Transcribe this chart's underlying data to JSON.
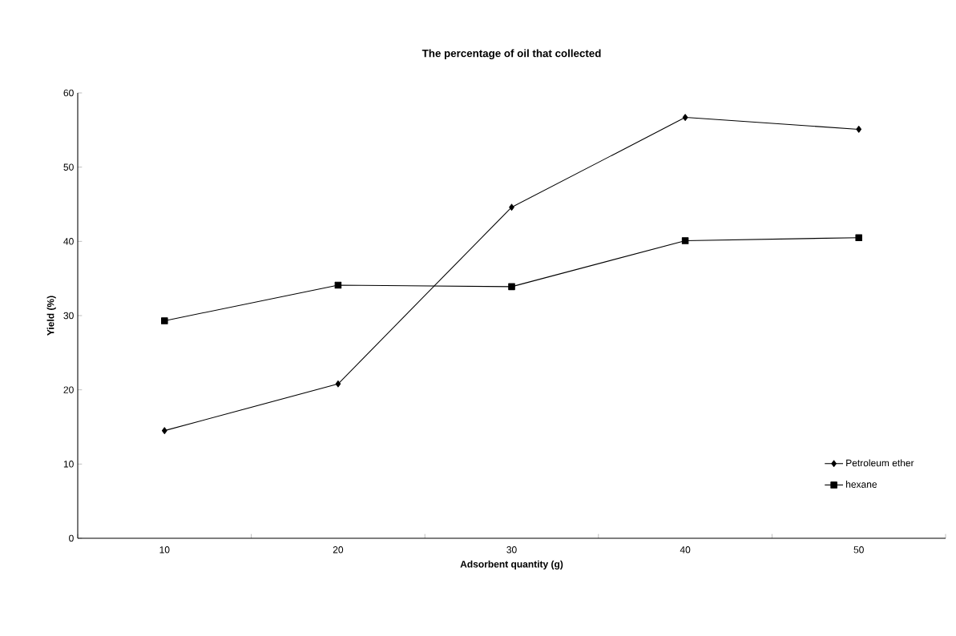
{
  "chart_data": {
    "type": "line",
    "title": "The percentage of oil that collected",
    "xlabel": "Adsorbent quantity (g)",
    "ylabel": "Yield (%)",
    "categories": [
      "10",
      "20",
      "30",
      "40",
      "50"
    ],
    "series": [
      {
        "name": "Petroleum ether",
        "color": "#000000",
        "marker": "diamond",
        "values": [
          14.5,
          20.8,
          44.6,
          56.7,
          55.1
        ]
      },
      {
        "name": "hexane",
        "color": "#000000",
        "marker": "square",
        "values": [
          29.3,
          34.1,
          33.9,
          40.1,
          40.5
        ]
      }
    ],
    "ylim": [
      0,
      60
    ],
    "yticks": [
      0,
      10,
      20,
      30,
      40,
      50,
      60
    ],
    "grid": false,
    "legend": "bottom right",
    "line_style": "solid"
  }
}
